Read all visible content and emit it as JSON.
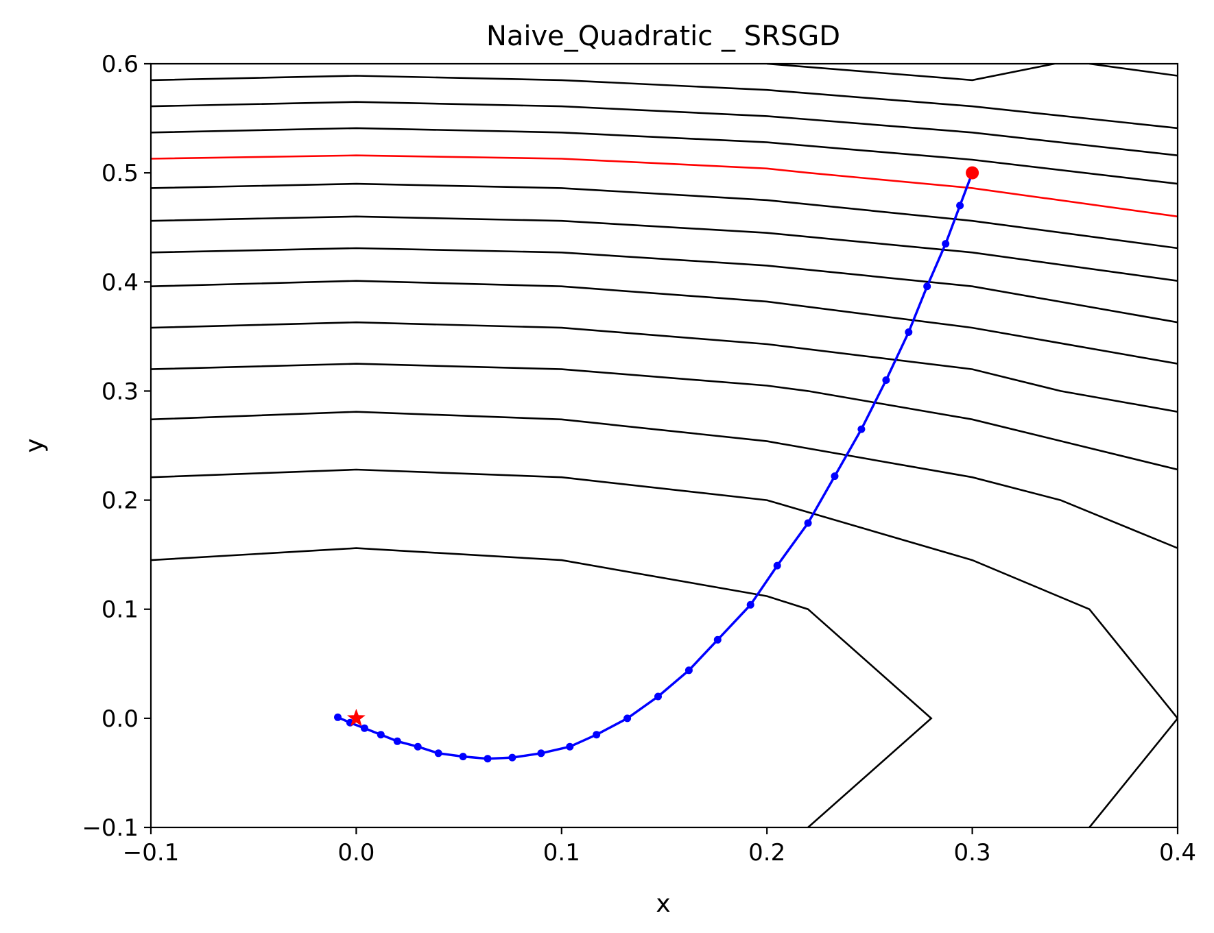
{
  "chart_data": {
    "type": "line",
    "title": "Naive_Quadratic _ SRSGD",
    "xlabel": "x",
    "ylabel": "y",
    "xlim": [
      -0.1,
      0.4
    ],
    "ylim": [
      -0.1,
      0.6
    ],
    "xticks": [
      "−0.1",
      "0.0",
      "0.1",
      "0.2",
      "0.3",
      "0.4"
    ],
    "yticks": [
      "−0.1",
      "0.0",
      "0.1",
      "0.2",
      "0.3",
      "0.4",
      "0.5",
      "0.6"
    ],
    "grid": false,
    "colors": {
      "contour": "#000000",
      "highlight_contour": "#ff0000",
      "path": "#0000ff",
      "markers": "#ff0000"
    },
    "contours": [
      [
        [
          -0.1,
          0.145
        ],
        [
          0.0,
          0.156
        ],
        [
          0.1,
          0.145
        ],
        [
          0.2,
          0.112
        ],
        [
          0.22,
          0.1
        ],
        [
          0.28,
          0.0
        ],
        [
          0.22,
          -0.1
        ]
      ],
      [
        [
          -0.1,
          0.221
        ],
        [
          0.0,
          0.228
        ],
        [
          0.1,
          0.221
        ],
        [
          0.2,
          0.2
        ],
        [
          0.3,
          0.145
        ],
        [
          0.357,
          0.1
        ],
        [
          0.4,
          0.0
        ],
        [
          0.357,
          -0.1
        ]
      ],
      [
        [
          -0.1,
          0.274
        ],
        [
          0.0,
          0.281
        ],
        [
          0.1,
          0.274
        ],
        [
          0.2,
          0.254
        ],
        [
          0.3,
          0.221
        ],
        [
          0.343,
          0.2
        ],
        [
          0.4,
          0.156
        ]
      ],
      [
        [
          -0.1,
          0.32
        ],
        [
          0.0,
          0.325
        ],
        [
          0.1,
          0.32
        ],
        [
          0.2,
          0.305
        ],
        [
          0.22,
          0.3
        ],
        [
          0.3,
          0.274
        ],
        [
          0.4,
          0.228
        ]
      ],
      [
        [
          -0.1,
          0.358
        ],
        [
          0.0,
          0.363
        ],
        [
          0.1,
          0.358
        ],
        [
          0.2,
          0.343
        ],
        [
          0.3,
          0.32
        ],
        [
          0.343,
          0.3
        ],
        [
          0.4,
          0.281
        ]
      ],
      [
        [
          -0.1,
          0.396
        ],
        [
          0.0,
          0.401
        ],
        [
          0.1,
          0.396
        ],
        [
          0.2,
          0.382
        ],
        [
          0.3,
          0.358
        ],
        [
          0.4,
          0.325
        ]
      ],
      [
        [
          -0.1,
          0.427
        ],
        [
          0.0,
          0.431
        ],
        [
          0.1,
          0.427
        ],
        [
          0.2,
          0.415
        ],
        [
          0.3,
          0.396
        ],
        [
          0.4,
          0.363
        ]
      ],
      [
        [
          -0.1,
          0.456
        ],
        [
          0.0,
          0.46
        ],
        [
          0.1,
          0.456
        ],
        [
          0.2,
          0.445
        ],
        [
          0.3,
          0.427
        ],
        [
          0.4,
          0.401
        ]
      ],
      [
        [
          -0.1,
          0.486
        ],
        [
          0.0,
          0.49
        ],
        [
          0.1,
          0.486
        ],
        [
          0.2,
          0.475
        ],
        [
          0.3,
          0.456
        ],
        [
          0.4,
          0.431
        ]
      ],
      [
        [
          -0.1,
          0.537
        ],
        [
          0.0,
          0.541
        ],
        [
          0.1,
          0.537
        ],
        [
          0.2,
          0.528
        ],
        [
          0.3,
          0.512
        ],
        [
          0.4,
          0.49
        ]
      ],
      [
        [
          -0.1,
          0.561
        ],
        [
          0.0,
          0.565
        ],
        [
          0.1,
          0.561
        ],
        [
          0.2,
          0.552
        ],
        [
          0.3,
          0.537
        ],
        [
          0.4,
          0.516
        ]
      ],
      [
        [
          -0.1,
          0.585
        ],
        [
          0.0,
          0.589
        ],
        [
          0.1,
          0.585
        ],
        [
          0.2,
          0.576
        ],
        [
          0.3,
          0.561
        ],
        [
          0.4,
          0.541
        ]
      ],
      [
        [
          0.2,
          0.6
        ],
        [
          0.3,
          0.585
        ],
        [
          0.34,
          0.6
        ]
      ],
      [
        [
          0.357,
          0.6
        ],
        [
          0.4,
          0.589
        ]
      ]
    ],
    "highlight_contour": [
      [
        -0.1,
        0.513
      ],
      [
        0.0,
        0.516
      ],
      [
        0.1,
        0.513
      ],
      [
        0.2,
        0.504
      ],
      [
        0.22,
        0.5
      ],
      [
        0.3,
        0.486
      ],
      [
        0.4,
        0.46
      ]
    ],
    "path": [
      [
        0.3,
        0.5
      ],
      [
        0.294,
        0.47
      ],
      [
        0.287,
        0.435
      ],
      [
        0.278,
        0.396
      ],
      [
        0.269,
        0.354
      ],
      [
        0.258,
        0.31
      ],
      [
        0.246,
        0.265
      ],
      [
        0.233,
        0.222
      ],
      [
        0.22,
        0.179
      ],
      [
        0.205,
        0.14
      ],
      [
        0.192,
        0.104
      ],
      [
        0.176,
        0.072
      ],
      [
        0.162,
        0.044
      ],
      [
        0.147,
        0.02
      ],
      [
        0.132,
        0.0
      ],
      [
        0.117,
        -0.015
      ],
      [
        0.104,
        -0.026
      ],
      [
        0.09,
        -0.032
      ],
      [
        0.076,
        -0.036
      ],
      [
        0.064,
        -0.037
      ],
      [
        0.052,
        -0.035
      ],
      [
        0.04,
        -0.032
      ],
      [
        0.03,
        -0.026
      ],
      [
        0.02,
        -0.021
      ],
      [
        0.012,
        -0.015
      ],
      [
        0.004,
        -0.009
      ],
      [
        -0.003,
        -0.004
      ],
      [
        -0.009,
        0.001
      ]
    ],
    "start_point": [
      0.3,
      0.5
    ],
    "optimum": [
      0.0,
      0.0
    ]
  }
}
